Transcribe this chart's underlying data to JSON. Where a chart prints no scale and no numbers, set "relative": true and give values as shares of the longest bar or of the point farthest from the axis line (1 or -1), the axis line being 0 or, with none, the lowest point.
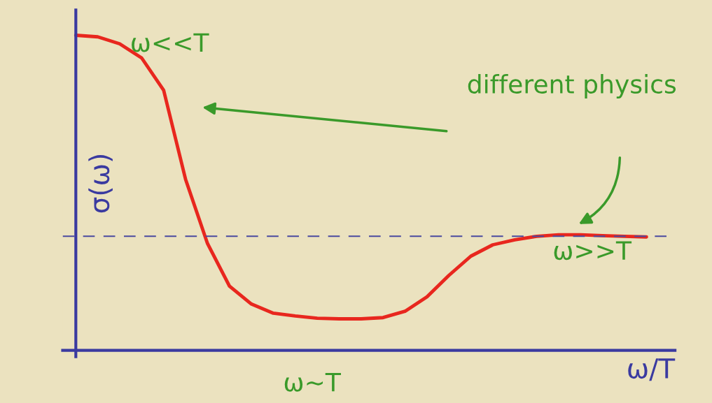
{
  "chart_data": {
    "type": "line",
    "relative": true,
    "xlabel": "ω/T",
    "ylabel": "σ(ω)",
    "categories": [
      null,
      null,
      null,
      null,
      null,
      null,
      null,
      null,
      null,
      null,
      null,
      null,
      null,
      null,
      null,
      null,
      null,
      null,
      null,
      null,
      null,
      null,
      null,
      null,
      null,
      null,
      null
    ],
    "series": [
      {
        "color": "#e8271e",
        "values": [
          1.0,
          0.995,
          0.973,
          0.928,
          0.826,
          0.543,
          0.339,
          0.204,
          0.147,
          0.118,
          0.109,
          0.102,
          0.1,
          0.1,
          0.104,
          0.124,
          0.17,
          0.238,
          0.299,
          0.335,
          0.351,
          0.362,
          0.367,
          0.367,
          0.364,
          0.362,
          0.36
        ]
      }
    ],
    "ref_lines": [
      {
        "axis": "y",
        "value": 0.362,
        "color": "#4a4aa0",
        "line_style": "dashed"
      }
    ],
    "annotations": [
      "ω<<T",
      "different physics",
      "ω>>T",
      "ω~T"
    ],
    "grid": false,
    "legend": false,
    "marker": "none",
    "line_style": "solid"
  }
}
